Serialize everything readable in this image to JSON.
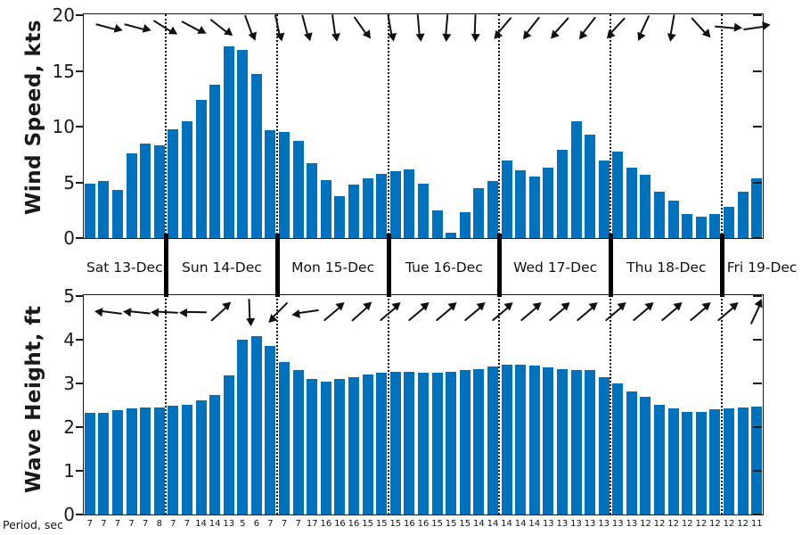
{
  "chart_data": [
    {
      "id": "wind",
      "type": "bar",
      "ylabel": "Wind Speed, kts",
      "ylim": [
        0,
        20
      ],
      "yticks": [
        0,
        5,
        10,
        15,
        20
      ],
      "grid": false,
      "values": [
        4.9,
        5.1,
        4.3,
        7.6,
        8.5,
        8.3,
        9.8,
        10.5,
        12.4,
        13.8,
        17.2,
        16.9,
        14.7,
        9.7,
        9.5,
        8.7,
        6.7,
        5.2,
        3.8,
        4.8,
        5.4,
        5.8,
        6.0,
        6.2,
        4.9,
        2.5,
        0.5,
        2.3,
        4.5,
        5.1,
        7.0,
        6.1,
        5.5,
        6.3,
        7.9,
        10.5,
        9.3,
        7.0,
        7.8,
        6.3,
        5.7,
        4.2,
        3.4,
        2.2,
        1.9,
        2.2,
        2.8,
        4.2,
        5.4
      ],
      "direction_arrows_deg": [
        15,
        15,
        32,
        28,
        38,
        70,
        78,
        75,
        82,
        55,
        80,
        85,
        95,
        92,
        130,
        128,
        132,
        128,
        133,
        115,
        100,
        48,
        5,
        -8
      ]
    },
    {
      "id": "wave",
      "type": "bar",
      "ylabel": "Wave Height, ft",
      "ylim": [
        0,
        5
      ],
      "yticks": [
        0,
        1,
        2,
        3,
        4,
        5
      ],
      "grid": false,
      "values": [
        2.33,
        2.33,
        2.39,
        2.43,
        2.45,
        2.45,
        2.48,
        2.52,
        2.61,
        2.73,
        3.18,
        4.0,
        4.08,
        3.85,
        3.5,
        3.3,
        3.1,
        3.05,
        3.1,
        3.15,
        3.21,
        3.25,
        3.27,
        3.27,
        3.24,
        3.24,
        3.27,
        3.3,
        3.33,
        3.39,
        3.43,
        3.43,
        3.4,
        3.36,
        3.32,
        3.3,
        3.3,
        3.15,
        3.0,
        2.82,
        2.7,
        2.52,
        2.42,
        2.35,
        2.35,
        2.4,
        2.43,
        2.44,
        2.47
      ],
      "direction_arrows_deg": [
        187,
        186,
        183,
        181,
        -42,
        88,
        135,
        172,
        -40,
        -42,
        -40,
        -40,
        -40,
        -40,
        -40,
        -40,
        -40,
        -40,
        -40,
        -40,
        -40,
        -40,
        -40,
        -65
      ]
    }
  ],
  "x_axis": {
    "days": [
      {
        "label": "Sat 13-Dec",
        "num_bars": 6
      },
      {
        "label": "Sun 14-Dec",
        "num_bars": 8
      },
      {
        "label": "Mon 15-Dec",
        "num_bars": 8
      },
      {
        "label": "Tue 16-Dec",
        "num_bars": 8
      },
      {
        "label": "Wed 17-Dec",
        "num_bars": 8
      },
      {
        "label": "Thu 18-Dec",
        "num_bars": 8
      },
      {
        "label": "Fri 19-Dec",
        "num_bars": 3
      }
    ]
  },
  "period_row": {
    "label": "Period, sec",
    "values": [
      7,
      7,
      7,
      7,
      7,
      8,
      7,
      7,
      14,
      14,
      13,
      5,
      6,
      7,
      7,
      7,
      17,
      16,
      16,
      16,
      15,
      15,
      15,
      16,
      16,
      15,
      15,
      15,
      14,
      14,
      14,
      14,
      14,
      13,
      13,
      13,
      13,
      13,
      13,
      13,
      12,
      12,
      12,
      12,
      12,
      12,
      12,
      12,
      11
    ]
  },
  "colors": {
    "bar": "#0072BD",
    "axis": "#1a1a1a"
  }
}
